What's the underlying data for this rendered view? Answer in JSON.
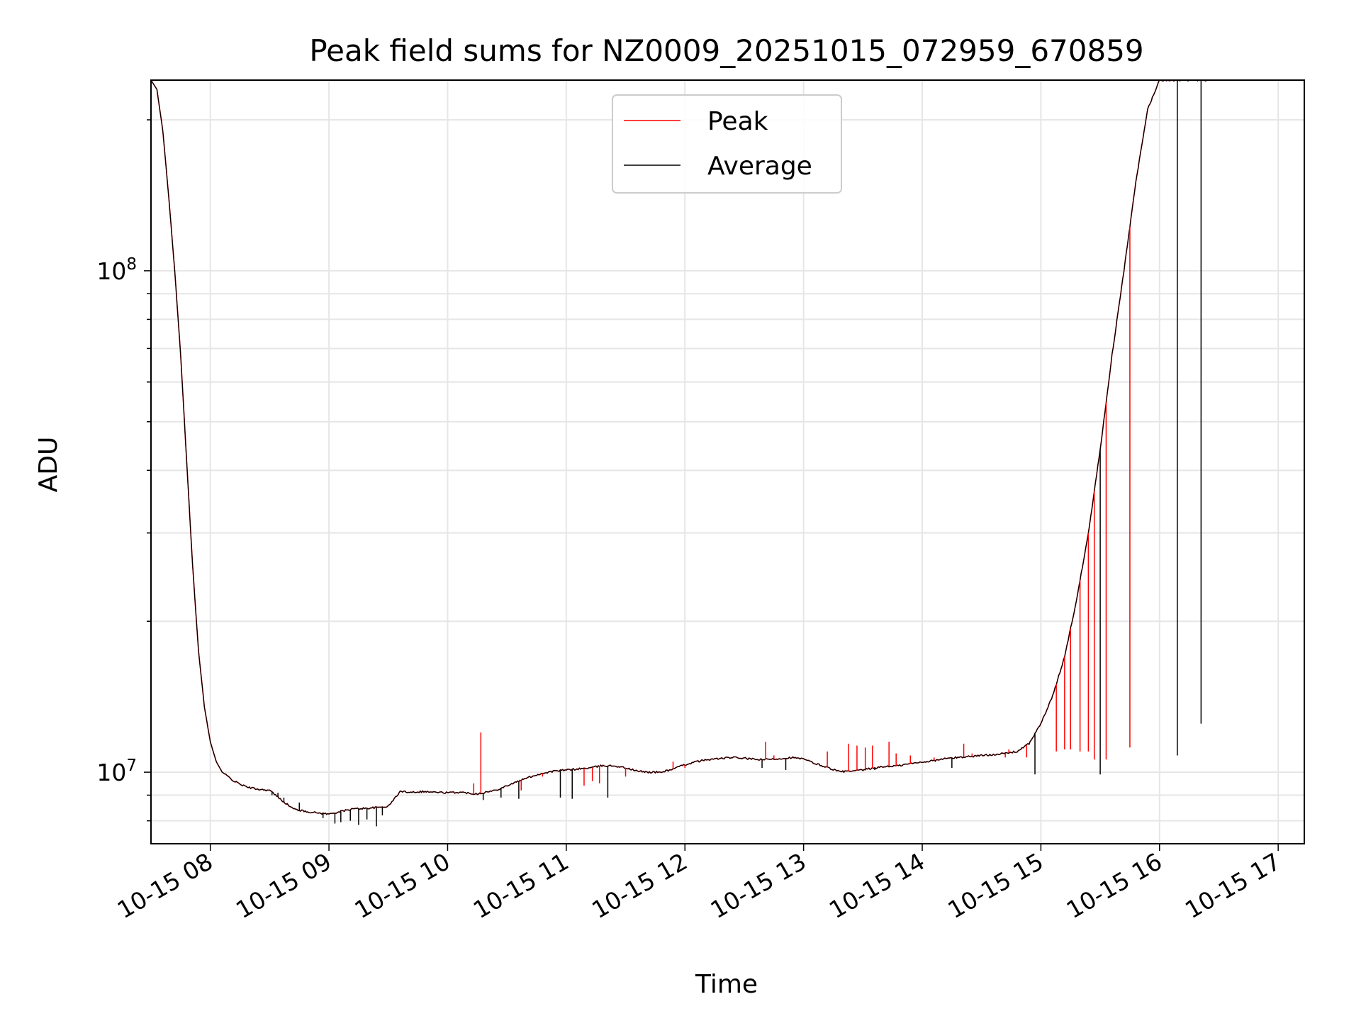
{
  "chart_data": {
    "type": "line",
    "title": "Peak field sums for NZ0009_20251015_072959_670859",
    "xlabel": "Time",
    "ylabel": "ADU",
    "yscale": "log",
    "ylim": [
      7200000,
      240000000
    ],
    "xlim_hours": [
      7.5,
      17.22
    ],
    "grid": true,
    "legend_position": "upper center",
    "x_tick_hours": [
      8,
      9,
      10,
      11,
      12,
      13,
      14,
      15,
      16,
      17
    ],
    "x_tick_labels": [
      "10-15 08",
      "10-15 09",
      "10-15 10",
      "10-15 11",
      "10-15 12",
      "10-15 13",
      "10-15 14",
      "10-15 15",
      "10-15 16",
      "10-15 17"
    ],
    "y_major_ticks": [
      {
        "value": 10000000,
        "base": "10",
        "exp": "7"
      },
      {
        "value": 100000000,
        "base": "10",
        "exp": "8"
      }
    ],
    "baseline_x_hours": [
      7.5,
      7.55,
      7.6,
      7.65,
      7.7,
      7.75,
      7.8,
      7.85,
      7.9,
      7.95,
      8.0,
      8.05,
      8.1,
      8.15,
      8.2,
      8.3,
      8.4,
      8.5,
      8.6,
      8.7,
      8.8,
      8.9,
      9.0,
      9.1,
      9.2,
      9.3,
      9.4,
      9.5,
      9.6,
      9.7,
      9.8,
      9.9,
      10.0,
      10.1,
      10.15,
      10.2,
      10.25,
      10.3,
      10.4,
      10.5,
      10.6,
      10.7,
      10.8,
      10.9,
      11.0,
      11.1,
      11.2,
      11.3,
      11.4,
      11.5,
      11.6,
      11.7,
      11.8,
      11.9,
      12.0,
      12.1,
      12.2,
      12.3,
      12.4,
      12.5,
      12.6,
      12.7,
      12.8,
      12.9,
      13.0,
      13.1,
      13.2,
      13.3,
      13.4,
      13.5,
      13.6,
      13.7,
      13.8,
      13.9,
      14.0,
      14.1,
      14.2,
      14.3,
      14.4,
      14.5,
      14.6,
      14.7,
      14.8,
      14.9,
      15.0,
      15.1,
      15.2,
      15.3,
      15.4,
      15.5,
      15.6,
      15.7,
      15.8,
      15.9,
      16.0,
      16.1,
      16.2,
      16.3,
      16.4,
      16.45,
      16.5,
      16.55,
      16.6,
      16.65,
      16.7,
      16.75,
      16.8,
      16.85,
      16.9,
      16.95,
      17.0,
      17.05,
      17.1,
      17.15
    ],
    "baseline_values": [
      240000000,
      230000000,
      190000000,
      140000000,
      100000000,
      68000000,
      42000000,
      26000000,
      17500000,
      13500000,
      11500000,
      10500000,
      10000000,
      9800000,
      9600000,
      9350000,
      9250000,
      9200000,
      8800000,
      8450000,
      8350000,
      8300000,
      8250000,
      8350000,
      8450000,
      8470000,
      8500000,
      8550000,
      9150000,
      9130000,
      9150000,
      9120000,
      9100000,
      9120000,
      9100000,
      9070000,
      9060000,
      9100000,
      9200000,
      9400000,
      9600000,
      9800000,
      9950000,
      10050000,
      10100000,
      10150000,
      10200000,
      10300000,
      10300000,
      10200000,
      10050000,
      10000000,
      10000000,
      10150000,
      10350000,
      10500000,
      10600000,
      10650000,
      10700000,
      10660000,
      10600000,
      10600000,
      10640000,
      10700000,
      10620000,
      10400000,
      10220000,
      10030000,
      10040000,
      10100000,
      10200000,
      10270000,
      10300000,
      10400000,
      10480000,
      10550000,
      10650000,
      10700000,
      10750000,
      10800000,
      10850000,
      10900000,
      11000000,
      11400000,
      12500000,
      14200000,
      17000000,
      22000000,
      30000000,
      44000000,
      68000000,
      100000000,
      150000000,
      210000000,
      240000000,
      240000000,
      240000000,
      240000000,
      240000000,
      240000000,
      240000000,
      240000000,
      240000000,
      240000000,
      240000000,
      240000000,
      240000000,
      240000000,
      240000000,
      240000000,
      240000000,
      240000000,
      240000000,
      240000000
    ],
    "series": [
      {
        "name": "Peak",
        "color": "#ff0000"
      },
      {
        "name": "Average",
        "color": "#000000"
      }
    ],
    "peak_spikes": [
      {
        "x": 10.22,
        "value": 9500000
      },
      {
        "x": 10.28,
        "value": 12000000
      },
      {
        "x": 10.62,
        "value": 9200000
      },
      {
        "x": 10.8,
        "value": 9800000
      },
      {
        "x": 11.15,
        "value": 9400000
      },
      {
        "x": 11.22,
        "value": 9600000
      },
      {
        "x": 11.28,
        "value": 9500000
      },
      {
        "x": 11.5,
        "value": 9800000
      },
      {
        "x": 11.68,
        "value": 10000000
      },
      {
        "x": 11.9,
        "value": 10500000
      },
      {
        "x": 12.0,
        "value": 10200000
      },
      {
        "x": 12.68,
        "value": 11500000
      },
      {
        "x": 12.75,
        "value": 10800000
      },
      {
        "x": 13.2,
        "value": 11000000
      },
      {
        "x": 13.38,
        "value": 11400000
      },
      {
        "x": 13.45,
        "value": 11300000
      },
      {
        "x": 13.52,
        "value": 11200000
      },
      {
        "x": 13.58,
        "value": 11300000
      },
      {
        "x": 13.72,
        "value": 11500000
      },
      {
        "x": 13.78,
        "value": 10900000
      },
      {
        "x": 13.9,
        "value": 10800000
      },
      {
        "x": 14.1,
        "value": 10700000
      },
      {
        "x": 14.35,
        "value": 11400000
      },
      {
        "x": 14.42,
        "value": 10900000
      },
      {
        "x": 14.7,
        "value": 10700000
      },
      {
        "x": 14.73,
        "value": 11100000
      },
      {
        "x": 14.88,
        "value": 10700000
      },
      {
        "x": 15.13,
        "value": 11000000
      },
      {
        "x": 15.2,
        "value": 11100000
      },
      {
        "x": 15.25,
        "value": 11100000
      },
      {
        "x": 15.33,
        "value": 11000000
      },
      {
        "x": 15.4,
        "value": 11000000
      },
      {
        "x": 15.45,
        "value": 10600000
      },
      {
        "x": 15.55,
        "value": 10600000
      },
      {
        "x": 15.75,
        "value": 11200000
      }
    ],
    "average_dips": [
      {
        "x": 8.52,
        "value": 9000000
      },
      {
        "x": 8.57,
        "value": 9100000
      },
      {
        "x": 8.62,
        "value": 8900000
      },
      {
        "x": 8.75,
        "value": 8700000
      },
      {
        "x": 8.95,
        "value": 8100000
      },
      {
        "x": 9.05,
        "value": 7900000
      },
      {
        "x": 9.1,
        "value": 7950000
      },
      {
        "x": 9.18,
        "value": 8000000
      },
      {
        "x": 9.25,
        "value": 7850000
      },
      {
        "x": 9.32,
        "value": 8050000
      },
      {
        "x": 9.4,
        "value": 7800000
      },
      {
        "x": 9.45,
        "value": 8200000
      },
      {
        "x": 10.3,
        "value": 8800000
      },
      {
        "x": 10.45,
        "value": 8900000
      },
      {
        "x": 10.6,
        "value": 8850000
      },
      {
        "x": 10.95,
        "value": 8900000
      },
      {
        "x": 11.05,
        "value": 8850000
      },
      {
        "x": 11.35,
        "value": 8900000
      },
      {
        "x": 12.65,
        "value": 10200000
      },
      {
        "x": 12.85,
        "value": 10100000
      },
      {
        "x": 13.6,
        "value": 10100000
      },
      {
        "x": 14.25,
        "value": 10200000
      },
      {
        "x": 14.95,
        "value": 9900000
      },
      {
        "x": 15.5,
        "value": 9900000
      },
      {
        "x": 16.15,
        "value": 10800000
      },
      {
        "x": 16.35,
        "value": 12500000
      }
    ],
    "legend": {
      "entries": [
        "Peak",
        "Average"
      ]
    }
  }
}
